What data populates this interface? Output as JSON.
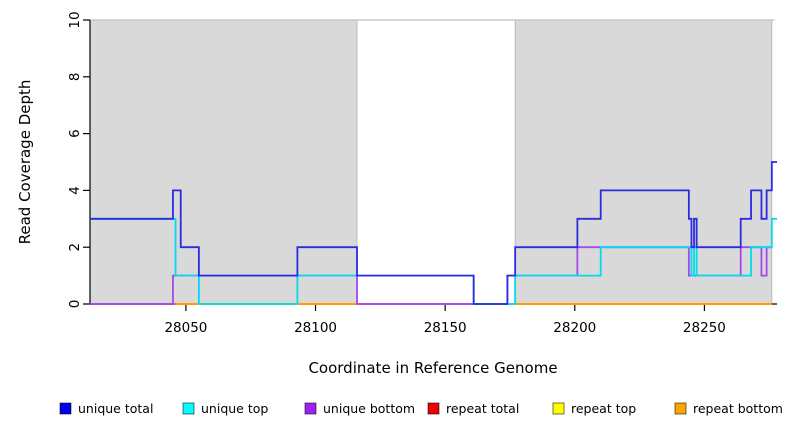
{
  "chart_data": {
    "type": "line",
    "subtype": "step-coverage-plot",
    "title": "",
    "xlabel": "Coordinate in Reference Genome",
    "ylabel": "Read Coverage Depth",
    "xlim": [
      28013,
      28278
    ],
    "ylim": [
      0,
      10
    ],
    "x_ticks": [
      28050,
      28100,
      28150,
      28200,
      28250
    ],
    "y_ticks": [
      0,
      2,
      4,
      6,
      8,
      10
    ],
    "grid": false,
    "legend_position": "bottom",
    "shaded_regions": {
      "color": "#d9d9d9",
      "border_color": "#b2b2b2",
      "ranges": [
        [
          28013,
          28116
        ],
        [
          28177,
          28276
        ]
      ]
    },
    "series": [
      {
        "name": "repeat top",
        "color": "#ffff00",
        "steps": [
          [
            28013,
            0
          ]
        ],
        "end": 28276
      },
      {
        "name": "repeat total",
        "color": "#ee2222",
        "steps": [
          [
            28013,
            0
          ]
        ],
        "end": 28276
      },
      {
        "name": "repeat bottom",
        "color": "#ff9f00",
        "steps": [
          [
            28013,
            0
          ]
        ],
        "end": 28276
      },
      {
        "name": "unique bottom",
        "color": "#a448ec",
        "steps": [
          [
            28013,
            0
          ],
          [
            28045,
            1
          ],
          [
            28116,
            0
          ],
          [
            28174,
            1
          ],
          [
            28201,
            2
          ],
          [
            28244,
            1
          ],
          [
            28264,
            2
          ],
          [
            28272,
            1
          ],
          [
            28274,
            2
          ]
        ],
        "end": 28276
      },
      {
        "name": "unique top",
        "color": "#00dcec",
        "steps": [
          [
            28013,
            3
          ],
          [
            28046,
            1
          ],
          [
            28055,
            0
          ],
          [
            28093,
            1
          ],
          [
            28161,
            0
          ],
          [
            28177,
            1
          ],
          [
            28210,
            2
          ],
          [
            28245,
            1
          ],
          [
            28246,
            2
          ],
          [
            28247,
            1
          ],
          [
            28268,
            2
          ],
          [
            28276,
            3
          ]
        ],
        "end": 28278
      },
      {
        "name": "unique total",
        "color": "#2b2be0",
        "steps": [
          [
            28013,
            3
          ],
          [
            28045,
            4
          ],
          [
            28048,
            2
          ],
          [
            28055,
            1
          ],
          [
            28093,
            2
          ],
          [
            28116,
            1
          ],
          [
            28161,
            0
          ],
          [
            28174,
            1
          ],
          [
            28177,
            2
          ],
          [
            28201,
            3
          ],
          [
            28210,
            4
          ],
          [
            28244,
            3
          ],
          [
            28245,
            2
          ],
          [
            28246,
            3
          ],
          [
            28247,
            2
          ],
          [
            28264,
            3
          ],
          [
            28268,
            4
          ],
          [
            28272,
            3
          ],
          [
            28274,
            4
          ],
          [
            28276,
            5
          ]
        ],
        "end": 28278
      }
    ],
    "zero_line_overlap_segments": [
      {
        "from": 28013,
        "to": 28046,
        "color": "#cf5f93"
      },
      {
        "from": 28046,
        "to": 28116,
        "color": "#ff9f00"
      },
      {
        "from": 28116,
        "to": 28177,
        "color": "#ef8fae"
      },
      {
        "from": 28177,
        "to": 28276,
        "color": "#ff9f00"
      }
    ]
  },
  "legend": {
    "items": [
      {
        "label": "unique total",
        "color": "#0000ee"
      },
      {
        "label": "unique top",
        "color": "#00ffff"
      },
      {
        "label": "unique bottom",
        "color": "#a020f0"
      },
      {
        "label": "repeat total",
        "color": "#ee0000"
      },
      {
        "label": "repeat top",
        "color": "#ffff00"
      },
      {
        "label": "repeat bottom",
        "color": "#ffa500"
      }
    ]
  },
  "axis": {
    "color": "#000000"
  }
}
